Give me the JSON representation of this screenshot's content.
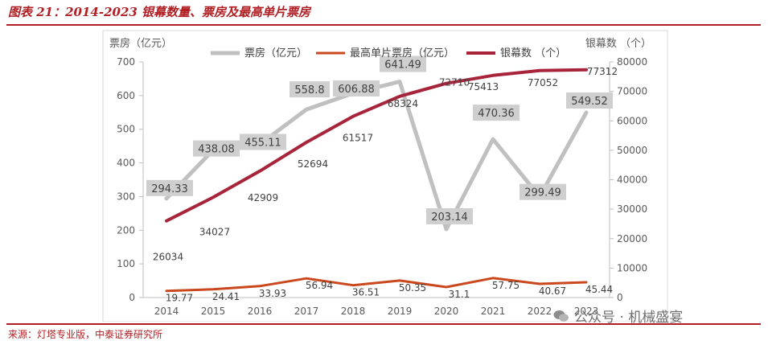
{
  "figure": {
    "title": "图表 21：2014-2023 银幕数量、票房及最高单片票房",
    "source": "来源：灯塔专业版，中泰证券研究所",
    "watermark": "公众号 · 机械盛宴"
  },
  "chart_data": {
    "type": "line",
    "categories": [
      "2014",
      "2015",
      "2016",
      "2017",
      "2018",
      "2019",
      "2020",
      "2021",
      "2022",
      "2023"
    ],
    "y_left_label": "票房（亿元）",
    "y_right_label": "银幕数 （个）",
    "ylim_left": [
      0,
      700
    ],
    "ylim_right": [
      0,
      80000
    ],
    "left_ticks": [
      0,
      100,
      200,
      300,
      400,
      500,
      600,
      700
    ],
    "right_ticks": [
      0,
      10000,
      20000,
      30000,
      40000,
      50000,
      60000,
      70000,
      80000
    ],
    "legend_position": "top",
    "series": [
      {
        "name": "票房（亿元）",
        "axis": "left",
        "color": "#c0c0c0",
        "values": [
          294.33,
          438.08,
          455.11,
          558.8,
          606.88,
          641.49,
          203.14,
          470.36,
          299.49,
          549.52
        ],
        "labels": [
          "294.33",
          "438.08",
          "455.11",
          "558.8",
          "606.88",
          "641.49",
          "203.14",
          "470.36",
          "299.49",
          "549.52"
        ]
      },
      {
        "name": "最高单片票房（亿元）",
        "axis": "left",
        "color": "#c9481e",
        "values": [
          19.77,
          24.41,
          33.93,
          56.94,
          36.51,
          50.35,
          31.1,
          57.75,
          40.67,
          45.44
        ],
        "labels": [
          "19.77",
          "24.41",
          "33.93",
          "56.94",
          "36.51",
          "50.35",
          "31.1",
          "57.75",
          "40.67",
          "45.44"
        ]
      },
      {
        "name": "银幕数 （个）",
        "axis": "right",
        "color": "#a8243a",
        "values": [
          26034,
          34027,
          42909,
          52694,
          61517,
          68324,
          72710,
          75413,
          77052,
          77312
        ],
        "labels": [
          "26034",
          "34027",
          "42909",
          "52694",
          "61517",
          "68324",
          "72710",
          "75413",
          "77052",
          "77312"
        ]
      }
    ]
  }
}
